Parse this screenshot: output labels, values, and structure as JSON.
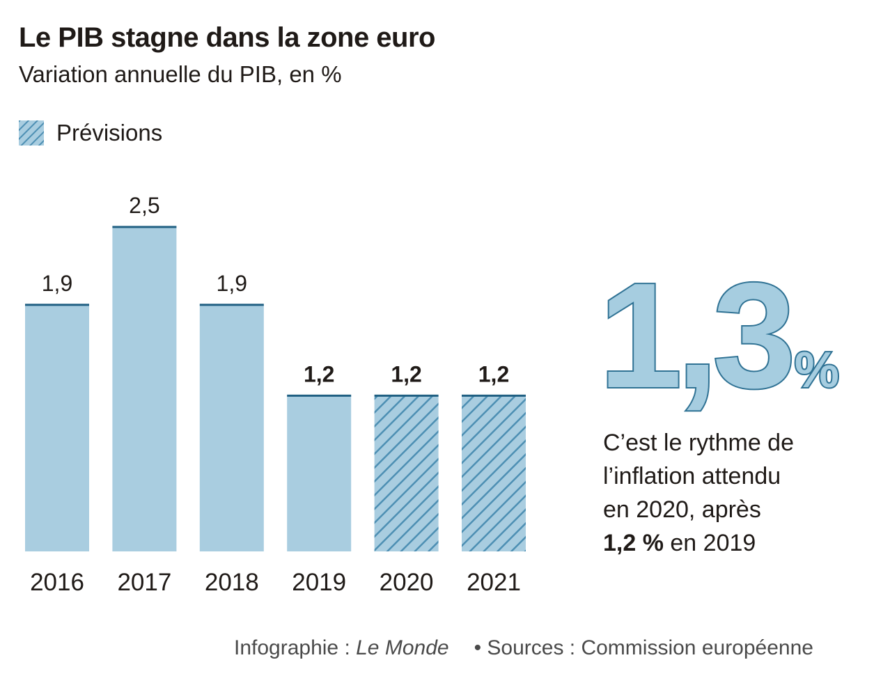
{
  "title": "Le PIB stagne dans la zone euro",
  "subtitle": "Variation annuelle du PIB, en %",
  "legend": {
    "label": "Prévisions"
  },
  "chart_data": {
    "type": "bar",
    "title": "Le PIB stagne dans la zone euro",
    "subtitle": "Variation annuelle du PIB, en %",
    "categories": [
      "2016",
      "2017",
      "2018",
      "2019",
      "2020",
      "2021"
    ],
    "values": [
      1.9,
      2.5,
      1.9,
      1.2,
      1.2,
      1.2
    ],
    "value_labels": [
      "1,9",
      "2,5",
      "1,9",
      "1,2",
      "1,2",
      "1,2"
    ],
    "value_label_bold": [
      false,
      false,
      false,
      true,
      true,
      true
    ],
    "forecast": [
      false,
      false,
      false,
      false,
      true,
      true
    ],
    "legend": [
      "Prévisions"
    ],
    "legend_position": "top-left",
    "grid": false,
    "ylim": [
      0,
      2.5
    ],
    "xlabel": "",
    "ylabel": ""
  },
  "highlight": {
    "number": "1,3",
    "unit": "%",
    "text_lines": [
      "C’est le rythme de",
      "l’inflation attendu",
      "en 2020, après"
    ],
    "last_line_bold": "1,2 %",
    "last_line_rest": " en 2019"
  },
  "footer": {
    "credit_prefix": "Infographie : ",
    "credit_brand": "Le Monde",
    "sources": "• Sources : Commission européenne"
  },
  "colors": {
    "bar_fill": "#a9cde0",
    "bar_top": "#1f5f82",
    "hatch_line": "#4d8fb3",
    "text": "#1f1a17"
  }
}
